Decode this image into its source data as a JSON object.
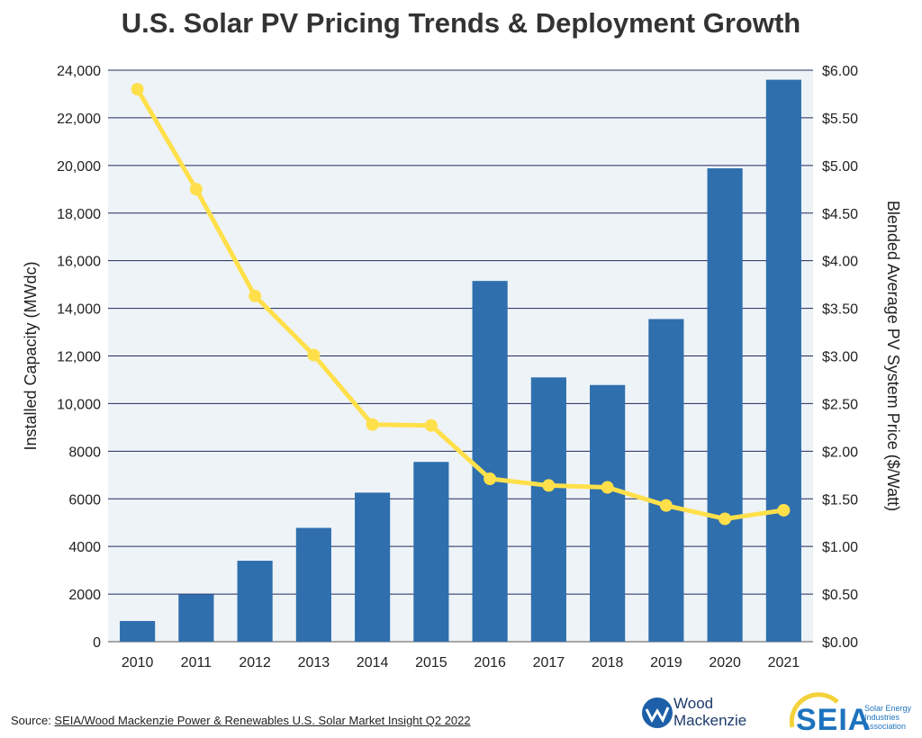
{
  "chart_data": {
    "type": "bar",
    "title": "U.S. Solar PV Pricing Trends & Deployment Growth",
    "categories": [
      "2010",
      "2011",
      "2012",
      "2013",
      "2014",
      "2015",
      "2016",
      "2017",
      "2018",
      "2019",
      "2020",
      "2021"
    ],
    "series": [
      {
        "type": "bar",
        "axis": "left",
        "color": "#2f6fad",
        "values": [
          870,
          1990,
          3400,
          4780,
          6260,
          7550,
          15150,
          11100,
          10780,
          13550,
          19880,
          23600
        ]
      },
      {
        "type": "line",
        "axis": "right",
        "color": "#ffe04a",
        "values": [
          5.8,
          4.75,
          3.63,
          3.01,
          2.28,
          2.27,
          1.71,
          1.64,
          1.62,
          1.43,
          1.29,
          1.38
        ]
      }
    ],
    "ylabel": "Installed Capacity (MWdc)",
    "y2label": "Blended Average PV System Price ($/Watt)",
    "ylim": [
      0,
      24000
    ],
    "y2lim": [
      0,
      6
    ],
    "yticks": [
      "0",
      "2000",
      "4000",
      "6000",
      "8000",
      "10,000",
      "12,000",
      "14,000",
      "16,000",
      "18,000",
      "20,000",
      "22,000",
      "24,000"
    ],
    "y2ticks": [
      "$0.00",
      "$0.50",
      "$1.00",
      "$1.50",
      "$2.00",
      "$2.50",
      "$3.00",
      "$3.50",
      "$4.00",
      "$4.50",
      "$5.00",
      "$5.50",
      "$6.00"
    ],
    "grid": true,
    "plot_background": "#eef3f8",
    "grid_color": "#1f2a5a"
  },
  "source": {
    "prefix": "Source: ",
    "link_text": "SEIA/Wood Mackenzie Power & Renewables U.S. Solar Market Insight Q2 2022"
  },
  "logos": {
    "wood_mackenzie": {
      "line1": "Wood",
      "line2": "Mackenzie",
      "icon": "wood-mackenzie-logo-icon"
    },
    "seia": {
      "text": "SEIA",
      "sub": "Solar Energy Industries Association",
      "icon": "seia-sun-arc-icon"
    }
  }
}
